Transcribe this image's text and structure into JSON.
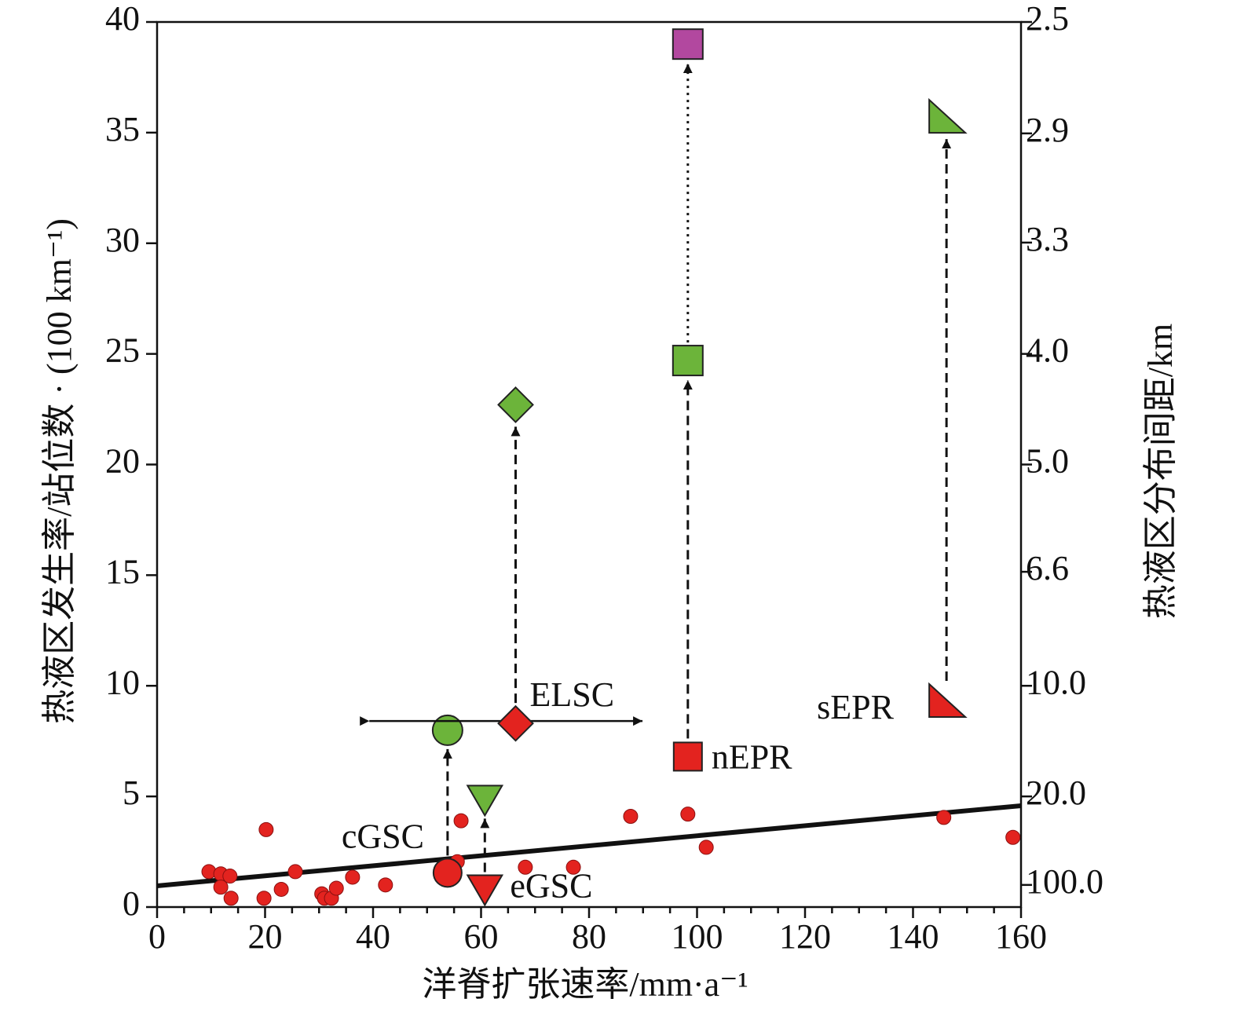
{
  "chart_data": {
    "type": "scatter",
    "x_label": "洋脊扩张速率/mm·a⁻¹",
    "y_label": "热液区发生率/站位数 · (100 km⁻¹)",
    "y2_label": "热液区分布间距/km",
    "xlim": [
      0,
      160
    ],
    "xticks": [
      0,
      20,
      40,
      60,
      80,
      100,
      120,
      140,
      160
    ],
    "ylim": [
      0,
      40
    ],
    "yticks": [
      0,
      5,
      10,
      15,
      20,
      25,
      30,
      35,
      40
    ],
    "y2_scale": "reciprocal",
    "y2lim": [
      null,
      2.5
    ],
    "y2ticks": [
      {
        "value": 2.5,
        "label": "2.5"
      },
      {
        "value": 2.86,
        "label": "2.9"
      },
      {
        "value": 3.33,
        "label": "3.3"
      },
      {
        "value": 4,
        "label": "4.0"
      },
      {
        "value": 5,
        "label": "5.0"
      },
      {
        "value": 6.6,
        "label": "6.6"
      },
      {
        "value": 10,
        "label": "10.0"
      },
      {
        "value": 20,
        "label": "20.0"
      },
      {
        "value": 100,
        "label": "100.0"
      }
    ],
    "series": [
      {
        "color": "#e3231f",
        "x": [
          9.6,
          11.8,
          13.5,
          11.8,
          13.7,
          20.2,
          19.8,
          23.0,
          25.6,
          30.5,
          31.0,
          32.3,
          33.2,
          36.2,
          42.3,
          56.3,
          55.6,
          68.2,
          77.1,
          87.7,
          98.3,
          101.7,
          145.7,
          158.5
        ],
        "values": [
          1.6,
          1.5,
          1.4,
          0.9,
          0.4,
          3.5,
          0.4,
          0.8,
          1.6,
          0.6,
          0.4,
          0.4,
          0.85,
          1.35,
          1.0,
          3.9,
          2.05,
          1.8,
          1.8,
          4.1,
          4.2,
          2.7,
          4.05,
          3.15
        ]
      }
    ],
    "trendline": {
      "x": [
        0,
        160
      ],
      "values": [
        0.96,
        4.58
      ]
    },
    "stage_colors": [
      "#e3231f",
      "#6cb43a",
      "#b2489f"
    ],
    "ridges": [
      {
        "label": "cGSC",
        "marker": "circle",
        "x": 53.8,
        "values": [
          1.55,
          7.99
        ]
      },
      {
        "label": "ELSC",
        "marker": "diamond",
        "x": 66.4,
        "values": [
          8.3,
          22.7
        ],
        "x_range": [
          39.3,
          89.9
        ]
      },
      {
        "label": "eGSC",
        "marker": "triangle-down",
        "x": 60.7,
        "values": [
          0.8,
          4.85
        ]
      },
      {
        "label": "nEPR",
        "marker": "square",
        "x": 98.3,
        "values": [
          6.8,
          24.7,
          39.0
        ]
      },
      {
        "label": "sEPR",
        "marker": "right-triangle",
        "x": 146.2,
        "values": [
          9.3,
          35.7
        ]
      }
    ]
  }
}
